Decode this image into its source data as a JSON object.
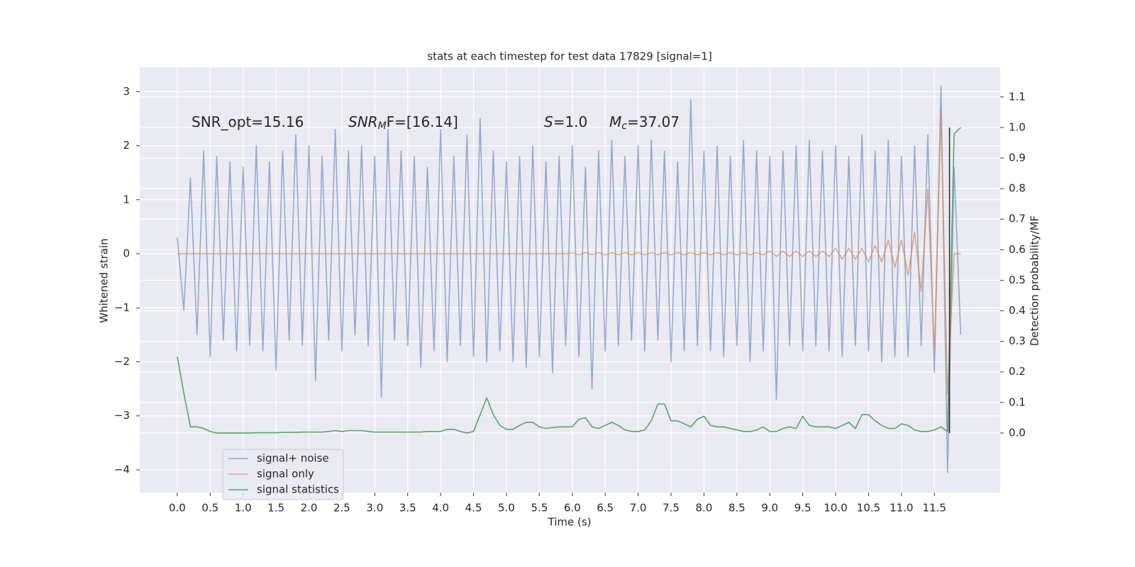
{
  "chart_data": {
    "type": "line",
    "title": "stats at each timestep for test data 17829 [signal=1]",
    "xlabel": "Time (s)",
    "ylabel": "Whitened strain",
    "y2label": "Detection probability/MF",
    "xlim": [
      -0.57,
      12.5
    ],
    "ylim": [
      -4.42,
      3.45
    ],
    "y2lim": [
      -0.195,
      1.197
    ],
    "grid": true,
    "xticks": [
      {
        "value": 0,
        "label": "0.0"
      },
      {
        "value": 0.5,
        "label": "0.5"
      },
      {
        "value": 1,
        "label": "1.0"
      },
      {
        "value": 1.5,
        "label": "1.5"
      },
      {
        "value": 2,
        "label": "2.0"
      },
      {
        "value": 2.5,
        "label": "2.5"
      },
      {
        "value": 3,
        "label": "3.0"
      },
      {
        "value": 3.5,
        "label": "3.5"
      },
      {
        "value": 4,
        "label": "4.0"
      },
      {
        "value": 4.5,
        "label": "4.5"
      },
      {
        "value": 5,
        "label": "5.0"
      },
      {
        "value": 5.5,
        "label": "5.5"
      },
      {
        "value": 6,
        "label": "6.0"
      },
      {
        "value": 6.5,
        "label": "6.5"
      },
      {
        "value": 7,
        "label": "7.0"
      },
      {
        "value": 7.5,
        "label": "7.5"
      },
      {
        "value": 8,
        "label": "8.0"
      },
      {
        "value": 8.5,
        "label": "8.5"
      },
      {
        "value": 9,
        "label": "9.0"
      },
      {
        "value": 9.5,
        "label": "9.5"
      },
      {
        "value": 10,
        "label": "10.0"
      },
      {
        "value": 10.5,
        "label": "10.5"
      },
      {
        "value": 11,
        "label": "11.0"
      },
      {
        "value": 11.5,
        "label": "11.5"
      }
    ],
    "yticks": [
      {
        "value": -4,
        "label": "−4"
      },
      {
        "value": -3,
        "label": "−3"
      },
      {
        "value": -2,
        "label": "−2"
      },
      {
        "value": -1,
        "label": "−1"
      },
      0,
      1,
      2,
      3
    ],
    "y2ticks": [
      {
        "value": 0,
        "label": "0.0"
      },
      {
        "value": 0.1,
        "label": "0.1"
      },
      {
        "value": 0.2,
        "label": "0.2"
      },
      {
        "value": 0.3,
        "label": "0.3"
      },
      {
        "value": 0.4,
        "label": "0.4"
      },
      {
        "value": 0.5,
        "label": "0.5"
      },
      {
        "value": 0.6,
        "label": "0.6"
      },
      {
        "value": 0.7,
        "label": "0.7"
      },
      {
        "value": 0.8,
        "label": "0.8"
      },
      {
        "value": 0.9,
        "label": "0.9"
      },
      {
        "value": 1,
        "label": "1.0"
      },
      {
        "value": 1.1,
        "label": "1.1"
      }
    ],
    "x": [
      0,
      0.1,
      0.2,
      0.3,
      0.4,
      0.5,
      0.6,
      0.7,
      0.8,
      0.9,
      1,
      1.1,
      1.2,
      1.3,
      1.4,
      1.5,
      1.6,
      1.7,
      1.8,
      1.9,
      2,
      2.1,
      2.2,
      2.3,
      2.4,
      2.5,
      2.6,
      2.7,
      2.8,
      2.9,
      3,
      3.1,
      3.2,
      3.3,
      3.4,
      3.5,
      3.6,
      3.7,
      3.8,
      3.9,
      4,
      4.1,
      4.2,
      4.3,
      4.4,
      4.5,
      4.6,
      4.7,
      4.8,
      4.9,
      5,
      5.1,
      5.2,
      5.3,
      5.4,
      5.5,
      5.6,
      5.7,
      5.8,
      5.9,
      6,
      6.1,
      6.2,
      6.3,
      6.4,
      6.5,
      6.6,
      6.7,
      6.8,
      6.9,
      7,
      7.1,
      7.2,
      7.3,
      7.4,
      7.5,
      7.6,
      7.7,
      7.8,
      7.9,
      8,
      8.1,
      8.2,
      8.3,
      8.4,
      8.5,
      8.6,
      8.7,
      8.8,
      8.9,
      9,
      9.1,
      9.2,
      9.3,
      9.4,
      9.5,
      9.6,
      9.7,
      9.8,
      9.9,
      10,
      10.1,
      10.2,
      10.3,
      10.4,
      10.5,
      10.6,
      10.7,
      10.8,
      10.9,
      11,
      11.1,
      11.2,
      11.3,
      11.4,
      11.5,
      11.6,
      11.7,
      11.8,
      11.9
    ],
    "series": [
      {
        "name": "signal+ noise",
        "color": "#4c72b0",
        "opacity": 0.55,
        "values": [
          0.3,
          -1.05,
          1.4,
          -1.5,
          1.9,
          -1.9,
          1.8,
          -1.6,
          1.7,
          -1.8,
          1.6,
          -1.7,
          2.0,
          -1.8,
          1.7,
          -2.15,
          1.9,
          -1.6,
          2.2,
          -1.7,
          2.0,
          -2.35,
          1.8,
          -1.6,
          2.3,
          -1.8,
          1.9,
          -1.5,
          2.0,
          -1.7,
          1.8,
          -2.65,
          2.3,
          -1.6,
          1.9,
          -1.7,
          1.8,
          -2.1,
          1.6,
          -1.8,
          2.3,
          -2.0,
          1.8,
          -1.7,
          2.2,
          -1.9,
          2.5,
          -2.0,
          1.9,
          -1.8,
          1.7,
          -2.0,
          1.8,
          -2.1,
          2.0,
          -1.9,
          1.7,
          -2.2,
          1.8,
          -1.7,
          2.0,
          -1.9,
          1.6,
          -2.5,
          1.9,
          -1.8,
          2.1,
          -1.7,
          1.8,
          -1.6,
          2.0,
          -1.8,
          2.1,
          -1.6,
          1.9,
          -2.0,
          1.7,
          -1.8,
          2.85,
          -1.7,
          1.9,
          -1.8,
          2.0,
          -1.9,
          1.8,
          -1.7,
          2.1,
          -2.0,
          1.9,
          -1.8,
          1.8,
          -2.7,
          1.9,
          -1.7,
          2.0,
          -1.8,
          2.1,
          -1.7,
          1.9,
          -1.8,
          2.0,
          -1.9,
          1.8,
          -1.7,
          2.2,
          -1.8,
          1.9,
          -2.0,
          2.1,
          -1.9,
          1.8,
          -1.9,
          2.0,
          -1.7,
          2.2,
          -2.2,
          3.1,
          -4.05,
          1.6,
          -1.5
        ]
      },
      {
        "name": "signal only",
        "color": "#dd8452",
        "opacity": 0.7,
        "values": [
          0,
          0,
          0,
          0,
          0,
          0,
          0,
          0,
          0,
          0,
          0,
          0,
          0,
          0,
          0,
          0,
          0,
          0,
          0,
          0,
          0,
          0,
          0,
          0,
          0,
          0,
          0,
          0,
          0,
          0,
          0,
          0,
          0,
          0,
          0,
          0,
          0,
          0,
          0,
          0,
          0,
          0,
          0,
          0,
          0,
          0,
          0,
          0,
          0,
          0,
          0,
          0,
          0,
          0,
          0,
          0,
          0,
          0,
          0,
          0,
          0.02,
          -0.02,
          0.02,
          -0.02,
          0.02,
          -0.02,
          0.02,
          -0.02,
          0.02,
          -0.02,
          0.02,
          -0.02,
          0.02,
          -0.02,
          0.02,
          -0.02,
          0.02,
          -0.02,
          0.02,
          -0.02,
          0.02,
          -0.02,
          0.02,
          -0.02,
          0.02,
          -0.02,
          0.02,
          -0.02,
          0.02,
          -0.02,
          0.05,
          -0.05,
          0.05,
          -0.05,
          0.05,
          -0.05,
          0.05,
          -0.05,
          0.05,
          -0.05,
          0.1,
          -0.1,
          0.1,
          -0.1,
          0.1,
          -0.15,
          0.15,
          -0.15,
          0.25,
          -0.25,
          0.25,
          -0.4,
          0.4,
          -0.7,
          1.2,
          -1.8,
          2.6,
          -2.6,
          0,
          0
        ]
      },
      {
        "name": "signal statistics",
        "color": "#55a868",
        "opacity": 1,
        "axis": "y2",
        "values": [
          0.25,
          0.13,
          0.02,
          0.02,
          0.015,
          0.005,
          0,
          0,
          0,
          0,
          0,
          0,
          0.001,
          0.001,
          0.001,
          0.001,
          0.002,
          0.002,
          0.002,
          0.003,
          0.003,
          0.003,
          0.003,
          0.005,
          0.008,
          0.005,
          0.008,
          0.008,
          0.008,
          0.005,
          0.003,
          0.003,
          0.003,
          0.003,
          0.003,
          0.003,
          0.003,
          0.003,
          0.005,
          0.005,
          0.005,
          0.012,
          0.012,
          0.005,
          0,
          0.005,
          0.06,
          0.115,
          0.06,
          0.025,
          0.012,
          0.012,
          0.025,
          0.035,
          0.035,
          0.02,
          0.015,
          0.018,
          0.02,
          0.02,
          0.02,
          0.045,
          0.05,
          0.02,
          0.015,
          0.025,
          0.035,
          0.025,
          0.01,
          0.005,
          0.005,
          0.01,
          0.04,
          0.095,
          0.095,
          0.04,
          0.04,
          0.03,
          0.02,
          0.045,
          0.055,
          0.025,
          0.02,
          0.02,
          0.015,
          0.01,
          0.005,
          0.005,
          0.01,
          0.02,
          0.005,
          0.005,
          0.015,
          0.02,
          0.015,
          0.055,
          0.025,
          0.02,
          0.02,
          0.02,
          0.015,
          0.025,
          0.035,
          0.015,
          0.06,
          0.06,
          0.04,
          0.025,
          0.015,
          0.015,
          0.03,
          0.025,
          0.01,
          0.005,
          0.005,
          0.01,
          0.02,
          0.005,
          0.98,
          1.0
        ]
      }
    ],
    "vline": {
      "x": 11.73,
      "from": 0,
      "to": 1,
      "color": "#333333"
    },
    "annotations": [
      {
        "parts": [
          {
            "text": "SNR_opt=15.16"
          }
        ]
      },
      {
        "parts": [
          {
            "text": "SNR",
            "style": "italic"
          },
          {
            "text": "M",
            "style": "italic-sub"
          },
          {
            "text": "F=[16.14]"
          }
        ]
      },
      {
        "parts": [
          {
            "text": "S",
            "style": "italic"
          },
          {
            "text": "=1.0"
          }
        ]
      },
      {
        "parts": [
          {
            "text": "M",
            "style": "italic"
          },
          {
            "text": "c",
            "style": "italic-sub"
          },
          {
            "text": "=37.07"
          }
        ]
      }
    ]
  }
}
